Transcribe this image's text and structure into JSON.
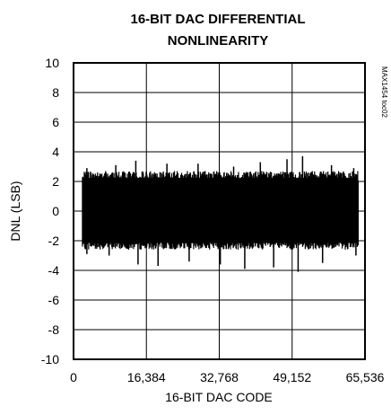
{
  "chart_data": {
    "type": "line",
    "title": "16-BIT DAC DIFFERENTIAL NONLINEARITY",
    "title_lines": [
      "16-BIT DAC DIFFERENTIAL",
      "NONLINEARITY"
    ],
    "xlabel": "16-BIT DAC CODE",
    "ylabel": "DNL (LSB)",
    "annotation": "MAX1454 toc02",
    "xlim": [
      0,
      65536
    ],
    "ylim": [
      -10,
      10
    ],
    "x_ticks": [
      0,
      16384,
      32768,
      49152,
      65536
    ],
    "x_tick_labels": [
      "0",
      "16,384",
      "32,768",
      "49,152",
      "65,536"
    ],
    "y_ticks": [
      -10,
      -8,
      -6,
      -4,
      -2,
      0,
      2,
      4,
      6,
      8,
      10
    ],
    "y_tick_labels": [
      "-10",
      "-8",
      "-6",
      "-4",
      "-2",
      "0",
      "2",
      "4",
      "6",
      "8",
      "10"
    ],
    "grid": true,
    "data_range_x": [
      2000,
      64000
    ],
    "band": {
      "typical_min": -2.6,
      "typical_max": 2.7
    },
    "peaks": [
      {
        "x": 3000,
        "y": 2.9
      },
      {
        "x": 9500,
        "y": 3.1
      },
      {
        "x": 14000,
        "y": 3.4
      },
      {
        "x": 21000,
        "y": 3.2
      },
      {
        "x": 28000,
        "y": 3.2
      },
      {
        "x": 36000,
        "y": 3.0
      },
      {
        "x": 42000,
        "y": 3.3
      },
      {
        "x": 48000,
        "y": 3.5
      },
      {
        "x": 51500,
        "y": 3.7
      },
      {
        "x": 58000,
        "y": 3.1
      },
      {
        "x": 63000,
        "y": 2.9
      }
    ],
    "troughs": [
      {
        "x": 3000,
        "y": -2.9
      },
      {
        "x": 8000,
        "y": -3.0
      },
      {
        "x": 14500,
        "y": -3.6
      },
      {
        "x": 19000,
        "y": -3.7
      },
      {
        "x": 26000,
        "y": -3.4
      },
      {
        "x": 33000,
        "y": -3.6
      },
      {
        "x": 38500,
        "y": -3.9
      },
      {
        "x": 45000,
        "y": -3.8
      },
      {
        "x": 50500,
        "y": -4.1
      },
      {
        "x": 56000,
        "y": -3.5
      },
      {
        "x": 63500,
        "y": -3.0
      }
    ]
  }
}
